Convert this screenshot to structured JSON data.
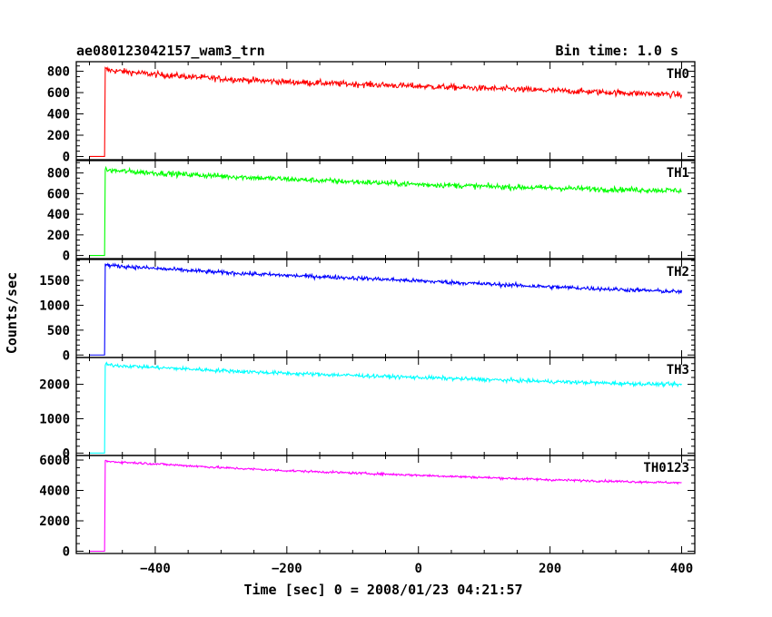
{
  "header": {
    "title": "ae080123042157_wam3_trn",
    "bin_time": "Bin time: 1.0 s"
  },
  "chart_data": {
    "type": "line",
    "xlabel": "Time [sec] 0 = 2008/01/23 04:21:57",
    "ylabel": "Counts/sec",
    "xlim": [
      -520,
      420
    ],
    "x_ticks": [
      -400,
      -200,
      0,
      200,
      400
    ],
    "x_minor_step": 50,
    "x_range_data": [
      -500,
      400
    ],
    "burst_onset": -476,
    "bin_time_s": 1.0,
    "panels": [
      {
        "label": "TH0",
        "color": "#ff0000",
        "ylim": [
          -30,
          890
        ],
        "y_ticks": [
          0,
          200,
          400,
          600,
          800
        ],
        "y_minor_step": 50,
        "pre_burst_level": 0,
        "profile_x": [
          -476,
          -470,
          -400,
          -300,
          -200,
          -100,
          0,
          100,
          200,
          300,
          400
        ],
        "profile_y": [
          820,
          810,
          770,
          730,
          700,
          680,
          660,
          640,
          620,
          600,
          580
        ],
        "noise_amplitude": 28
      },
      {
        "label": "TH1",
        "color": "#00ff00",
        "ylim": [
          -30,
          920
        ],
        "y_ticks": [
          0,
          200,
          400,
          600,
          800
        ],
        "y_minor_step": 50,
        "pre_burst_level": 0,
        "profile_x": [
          -476,
          -470,
          -400,
          -300,
          -200,
          -100,
          0,
          100,
          200,
          300,
          400
        ],
        "profile_y": [
          830,
          825,
          800,
          770,
          740,
          715,
          690,
          670,
          655,
          640,
          630
        ],
        "noise_amplitude": 26
      },
      {
        "label": "TH2",
        "color": "#0000ff",
        "ylim": [
          -50,
          1920
        ],
        "y_ticks": [
          0,
          500,
          1000,
          1500
        ],
        "y_minor_step": 100,
        "pre_burst_level": 0,
        "profile_x": [
          -476,
          -470,
          -400,
          -300,
          -200,
          -100,
          0,
          100,
          200,
          300,
          400
        ],
        "profile_y": [
          1820,
          1800,
          1740,
          1660,
          1600,
          1550,
          1490,
          1430,
          1370,
          1320,
          1270
        ],
        "noise_amplitude": 40
      },
      {
        "label": "TH3",
        "color": "#00ffff",
        "ylim": [
          -70,
          2780
        ],
        "y_ticks": [
          0,
          1000,
          2000
        ],
        "y_minor_step": 200,
        "pre_burst_level": 0,
        "profile_x": [
          -476,
          -470,
          -400,
          -300,
          -200,
          -100,
          0,
          100,
          200,
          300,
          400
        ],
        "profile_y": [
          2580,
          2560,
          2490,
          2400,
          2320,
          2260,
          2200,
          2140,
          2080,
          2030,
          1990
        ],
        "noise_amplitude": 55
      },
      {
        "label": "TH0123",
        "color": "#ff00ff",
        "ylim": [
          -150,
          6300
        ],
        "y_ticks": [
          0,
          2000,
          4000,
          6000
        ],
        "y_minor_step": 500,
        "pre_burst_level": 0,
        "profile_x": [
          -476,
          -470,
          -400,
          -300,
          -200,
          -100,
          0,
          100,
          200,
          300,
          400
        ],
        "profile_y": [
          5950,
          5900,
          5750,
          5500,
          5300,
          5150,
          5000,
          4850,
          4700,
          4600,
          4500
        ],
        "noise_amplitude": 75
      }
    ]
  }
}
